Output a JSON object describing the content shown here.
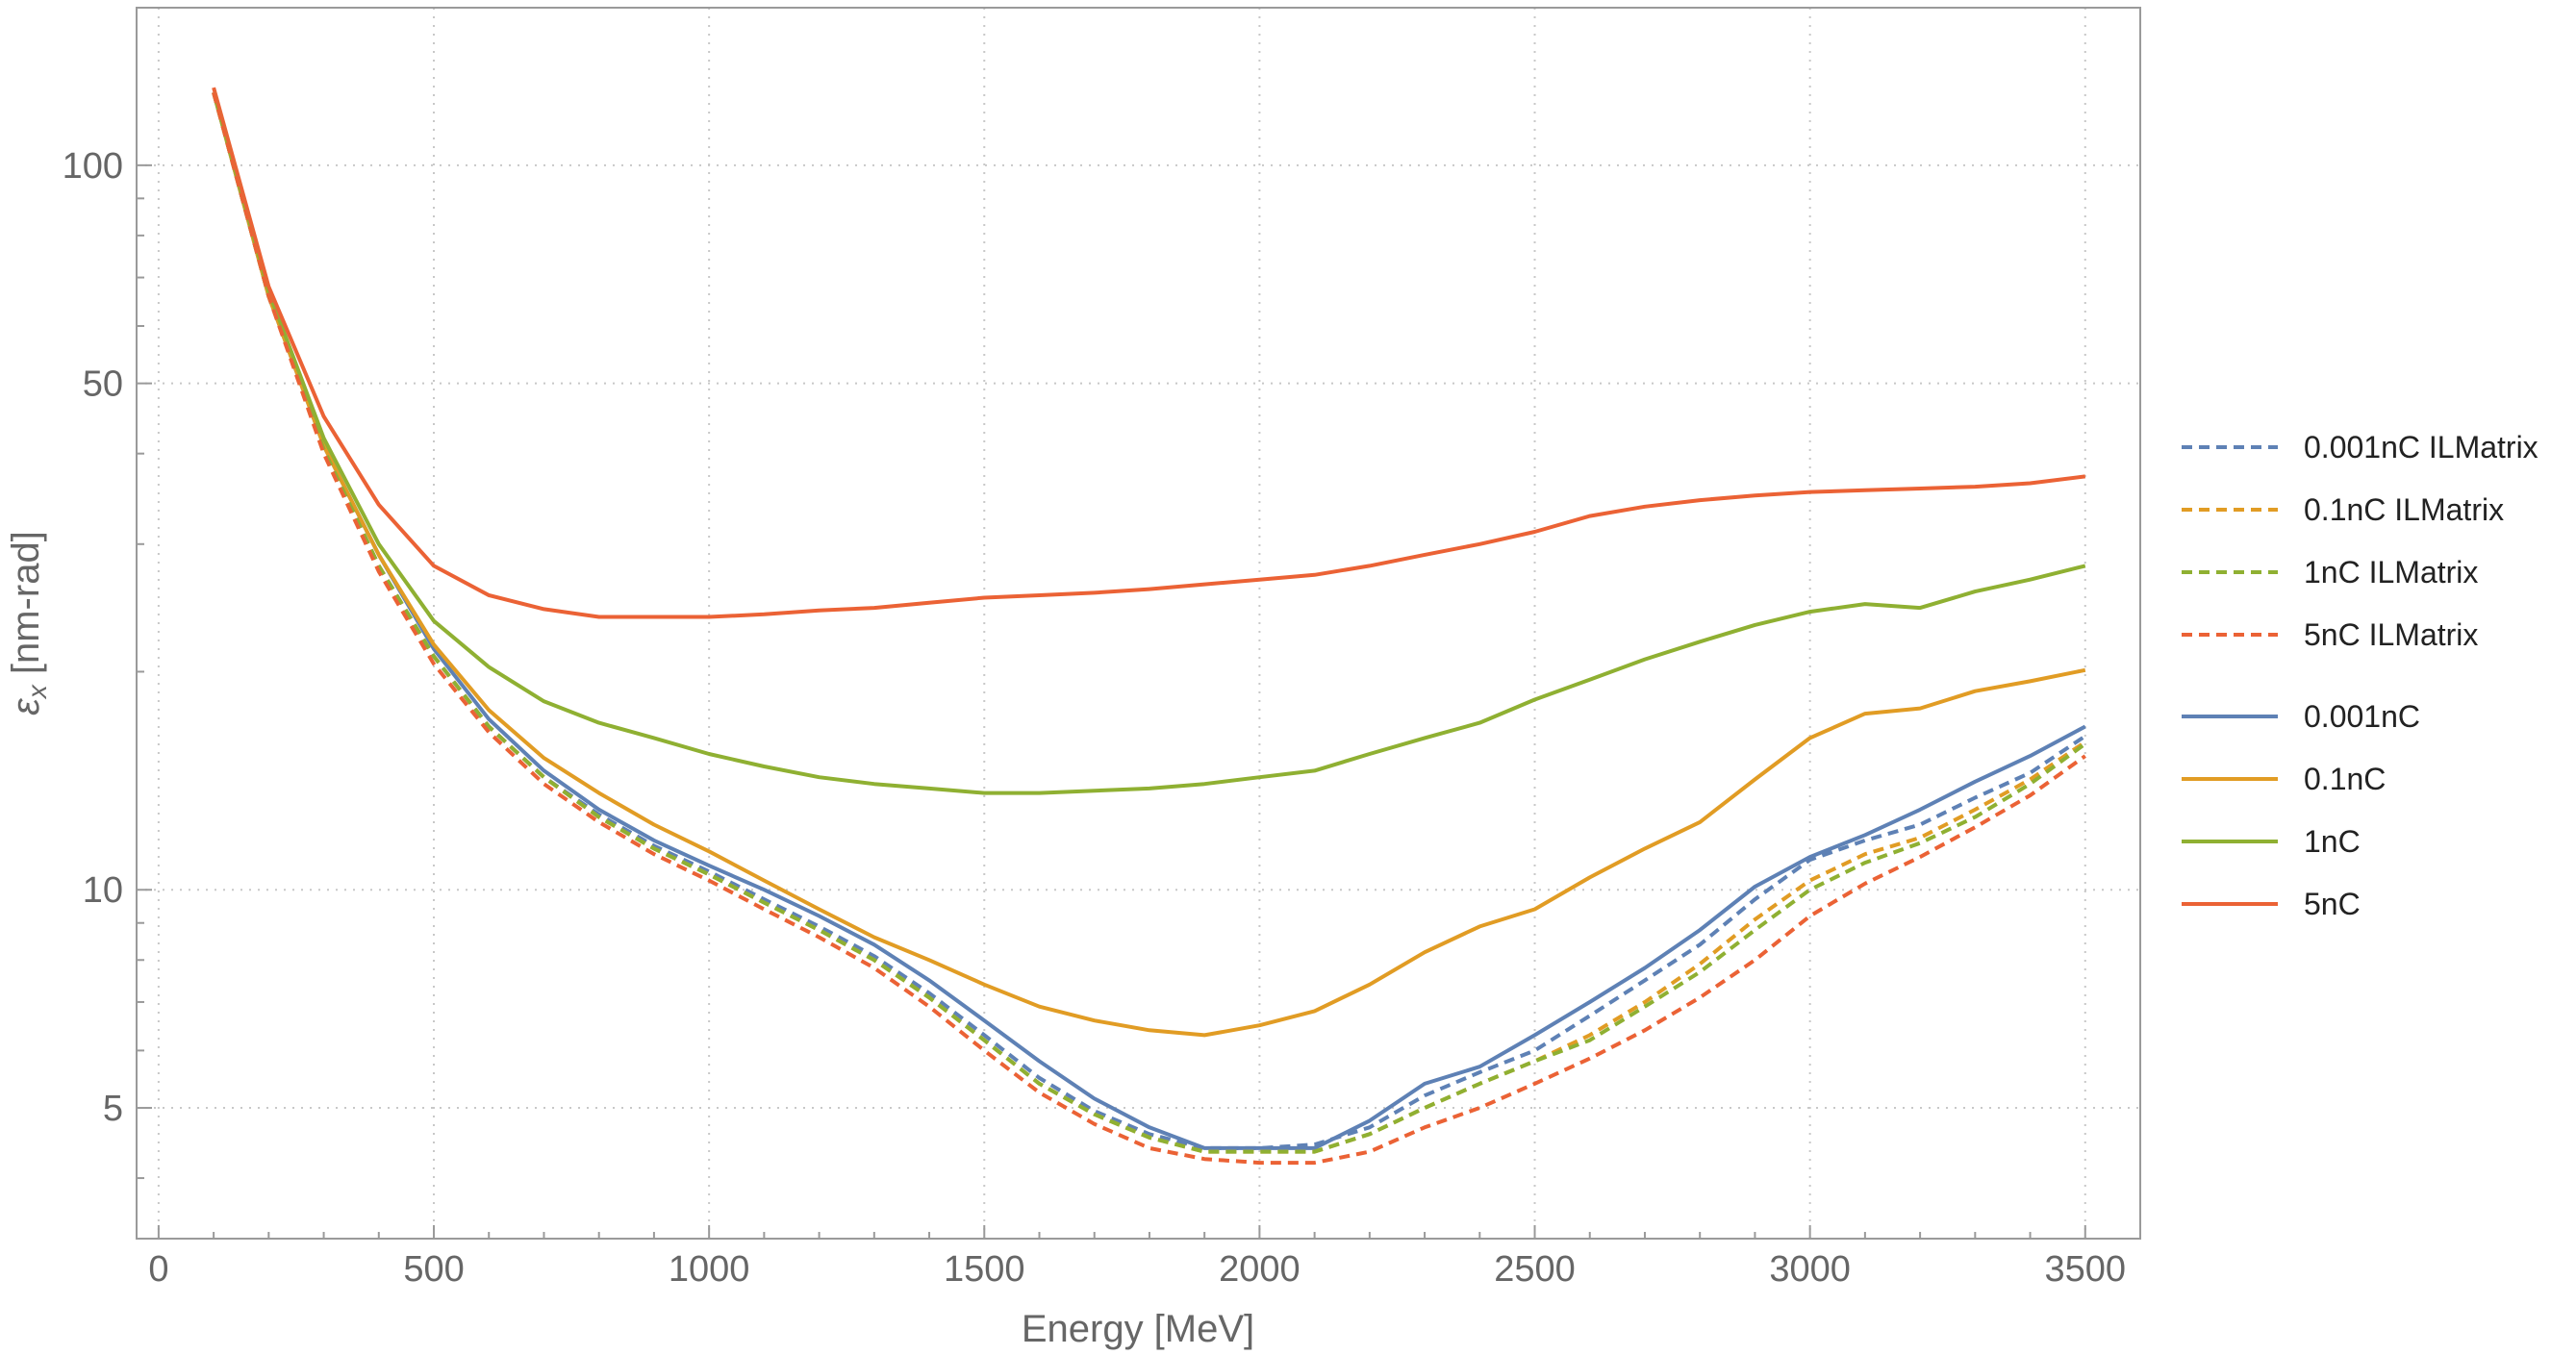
{
  "chart_data": {
    "type": "line",
    "title": "",
    "xlabel": "Energy [MeV]",
    "ylabel_main": "ε",
    "ylabel_sub": "x",
    "ylabel_units": " [nm-rad]",
    "xlim": [
      -40,
      3600
    ],
    "ylim": [
      3.3,
      165
    ],
    "yscale": "log",
    "x_ticks": [
      0,
      500,
      1000,
      1500,
      2000,
      2500,
      3000,
      3500
    ],
    "x_tick_labels": [
      "0",
      "500",
      "1000",
      "1500",
      "2000",
      "2500",
      "3000",
      "3500"
    ],
    "y_ticks": [
      5,
      10,
      50,
      100
    ],
    "y_tick_labels": [
      "5",
      "10",
      "50",
      "100"
    ],
    "y_minor_ticks": [
      4,
      6,
      7,
      8,
      9,
      20,
      30,
      40,
      60,
      70,
      80,
      90
    ],
    "grid": true,
    "legend_position": "right",
    "x": [
      100,
      200,
      300,
      400,
      500,
      600,
      700,
      800,
      900,
      1000,
      1100,
      1200,
      1300,
      1400,
      1500,
      1600,
      1700,
      1800,
      1900,
      2000,
      2100,
      2200,
      2300,
      2400,
      2500,
      2600,
      2700,
      2800,
      2900,
      3000,
      3100,
      3200,
      3300,
      3400,
      3500
    ],
    "series": [
      {
        "name": "0.001nC ILMatrix",
        "color": "#5e81b5",
        "dash": true,
        "values": [
          126,
          66,
          40.5,
          28,
          21,
          16.8,
          14.3,
          12.7,
          11.5,
          10.6,
          9.7,
          8.9,
          8.1,
          7.2,
          6.3,
          5.5,
          4.95,
          4.6,
          4.4,
          4.4,
          4.45,
          4.7,
          5.2,
          5.6,
          6.0,
          6.7,
          7.5,
          8.4,
          9.7,
          11.0,
          11.7,
          12.3,
          13.4,
          14.5,
          16.3
        ]
      },
      {
        "name": "0.1nC ILMatrix",
        "color": "#e19c24",
        "dash": true,
        "values": [
          126,
          66,
          40.5,
          28,
          21,
          16.8,
          14.3,
          12.6,
          11.4,
          10.5,
          9.6,
          8.8,
          8.0,
          7.1,
          6.2,
          5.4,
          4.9,
          4.55,
          4.35,
          4.35,
          4.35,
          4.6,
          5.0,
          5.4,
          5.8,
          6.3,
          7.0,
          7.9,
          9.1,
          10.3,
          11.2,
          11.8,
          12.9,
          14.2,
          16.0
        ]
      },
      {
        "name": "1nC ILMatrix",
        "color": "#8fb032",
        "dash": true,
        "values": [
          126,
          66,
          40.5,
          28,
          21,
          16.8,
          14.3,
          12.6,
          11.4,
          10.5,
          9.6,
          8.8,
          8.0,
          7.1,
          6.2,
          5.4,
          4.9,
          4.55,
          4.35,
          4.35,
          4.35,
          4.6,
          5.0,
          5.4,
          5.8,
          6.2,
          6.9,
          7.7,
          8.8,
          10.0,
          10.9,
          11.6,
          12.6,
          14.0,
          15.9
        ]
      },
      {
        "name": "5nC ILMatrix",
        "color": "#eb6235",
        "dash": true,
        "values": [
          126,
          66,
          40,
          27.5,
          20.5,
          16.5,
          14.0,
          12.4,
          11.2,
          10.3,
          9.4,
          8.6,
          7.8,
          6.9,
          6.0,
          5.25,
          4.75,
          4.4,
          4.25,
          4.2,
          4.2,
          4.35,
          4.7,
          5.0,
          5.4,
          5.85,
          6.4,
          7.1,
          8.0,
          9.2,
          10.2,
          11.1,
          12.2,
          13.5,
          15.3
        ]
      },
      {
        "name": "0.001nC",
        "color": "#5e81b5",
        "dash": false,
        "values": [
          126,
          66,
          41,
          29,
          21.5,
          17.2,
          14.6,
          12.9,
          11.7,
          10.8,
          10.0,
          9.2,
          8.4,
          7.5,
          6.6,
          5.8,
          5.15,
          4.7,
          4.4,
          4.4,
          4.4,
          4.8,
          5.4,
          5.7,
          6.3,
          7.0,
          7.8,
          8.8,
          10.1,
          11.1,
          11.9,
          12.9,
          14.1,
          15.3,
          16.8
        ]
      },
      {
        "name": "0.1nC",
        "color": "#e19c24",
        "dash": false,
        "values": [
          126,
          66,
          41,
          29,
          21.8,
          17.7,
          15.2,
          13.6,
          12.3,
          11.3,
          10.3,
          9.4,
          8.6,
          8.0,
          7.4,
          6.9,
          6.6,
          6.4,
          6.3,
          6.5,
          6.8,
          7.4,
          8.2,
          8.9,
          9.4,
          10.4,
          11.4,
          12.4,
          14.2,
          16.2,
          17.5,
          17.8,
          18.8,
          19.4,
          20.1
        ]
      },
      {
        "name": "1nC",
        "color": "#8fb032",
        "dash": false,
        "values": [
          126,
          67,
          42,
          30,
          23.5,
          20.3,
          18.2,
          17.0,
          16.2,
          15.4,
          14.8,
          14.3,
          14.0,
          13.8,
          13.6,
          13.6,
          13.7,
          13.8,
          14.0,
          14.3,
          14.6,
          15.4,
          16.2,
          17.0,
          18.3,
          19.5,
          20.8,
          22.0,
          23.2,
          24.2,
          24.8,
          24.5,
          25.8,
          26.8,
          28.0
        ]
      },
      {
        "name": "5nC",
        "color": "#eb6235",
        "dash": false,
        "values": [
          128,
          68,
          45,
          34,
          28.0,
          25.5,
          24.4,
          23.8,
          23.8,
          23.8,
          24.0,
          24.3,
          24.5,
          24.9,
          25.3,
          25.5,
          25.7,
          26.0,
          26.4,
          26.8,
          27.2,
          28.0,
          29.0,
          30.0,
          31.2,
          32.8,
          33.8,
          34.5,
          35.0,
          35.4,
          35.6,
          35.8,
          36.0,
          36.4,
          37.2
        ]
      }
    ]
  }
}
